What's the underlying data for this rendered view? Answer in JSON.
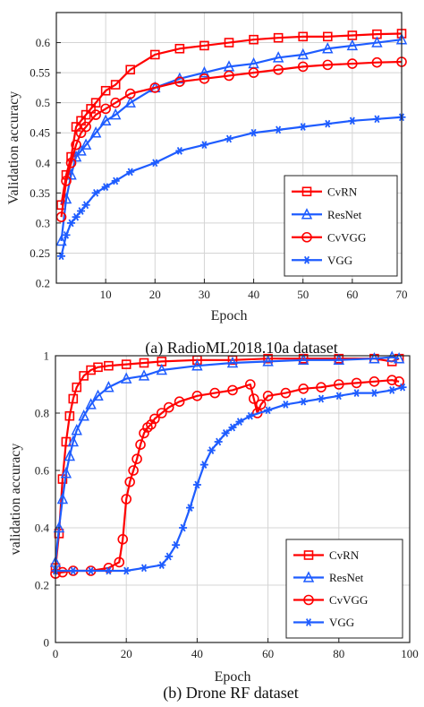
{
  "figure": {
    "caption_a": "(a) RadioML2018.10a dataset",
    "caption_b": "(b) Drone RF dataset"
  },
  "chart_data": [
    {
      "type": "line",
      "xlabel": "Epoch",
      "ylabel": "Validation accuracy",
      "xlim": [
        0,
        70
      ],
      "ylim": [
        0.2,
        0.65
      ],
      "xticks": [
        10,
        20,
        30,
        40,
        50,
        60,
        70
      ],
      "yticks": [
        0.2,
        0.25,
        0.3,
        0.35,
        0.4,
        0.45,
        0.5,
        0.55,
        0.6
      ],
      "grid": true,
      "legend_position": "bottom-right",
      "series": [
        {
          "name": "CvRN",
          "color": "#ff0000",
          "marker": "square",
          "x": [
            1,
            2,
            3,
            4,
            5,
            6,
            7,
            8,
            10,
            12,
            15,
            20,
            25,
            30,
            35,
            40,
            45,
            50,
            55,
            60,
            65,
            70
          ],
          "y": [
            0.33,
            0.38,
            0.41,
            0.46,
            0.47,
            0.48,
            0.49,
            0.5,
            0.52,
            0.53,
            0.555,
            0.58,
            0.59,
            0.595,
            0.6,
            0.605,
            0.608,
            0.61,
            0.61,
            0.612,
            0.614,
            0.615
          ]
        },
        {
          "name": "ResNet",
          "color": "#1e5cff",
          "marker": "triangle",
          "x": [
            1,
            2,
            3,
            4,
            5,
            6,
            8,
            10,
            12,
            15,
            20,
            25,
            30,
            35,
            40,
            45,
            50,
            55,
            60,
            65,
            70
          ],
          "y": [
            0.27,
            0.34,
            0.38,
            0.41,
            0.42,
            0.43,
            0.45,
            0.47,
            0.48,
            0.5,
            0.525,
            0.54,
            0.55,
            0.56,
            0.565,
            0.575,
            0.58,
            0.59,
            0.595,
            0.6,
            0.605
          ]
        },
        {
          "name": "CvVGG",
          "color": "#ff0000",
          "marker": "circle",
          "x": [
            1,
            2,
            3,
            4,
            5,
            6,
            8,
            10,
            12,
            15,
            20,
            25,
            30,
            35,
            40,
            45,
            50,
            55,
            60,
            65,
            70
          ],
          "y": [
            0.31,
            0.37,
            0.4,
            0.43,
            0.45,
            0.46,
            0.48,
            0.49,
            0.5,
            0.515,
            0.525,
            0.535,
            0.54,
            0.545,
            0.55,
            0.555,
            0.56,
            0.563,
            0.565,
            0.567,
            0.568
          ]
        },
        {
          "name": "VGG",
          "color": "#1e5cff",
          "marker": "asterisk",
          "x": [
            1,
            2,
            3,
            4,
            5,
            6,
            8,
            10,
            12,
            15,
            20,
            25,
            30,
            35,
            40,
            45,
            50,
            55,
            60,
            65,
            70
          ],
          "y": [
            0.245,
            0.28,
            0.3,
            0.31,
            0.32,
            0.33,
            0.35,
            0.36,
            0.37,
            0.385,
            0.4,
            0.42,
            0.43,
            0.44,
            0.45,
            0.455,
            0.46,
            0.465,
            0.47,
            0.473,
            0.476
          ]
        }
      ]
    },
    {
      "type": "line",
      "xlabel": "Epoch",
      "ylabel": "validation accuracy",
      "xlim": [
        0,
        100
      ],
      "ylim": [
        0,
        1
      ],
      "xticks": [
        0,
        20,
        40,
        60,
        80,
        100
      ],
      "yticks": [
        0,
        0.2,
        0.4,
        0.6,
        0.8,
        1
      ],
      "grid": true,
      "legend_position": "bottom-right",
      "series": [
        {
          "name": "CvRN",
          "color": "#ff0000",
          "marker": "square",
          "x": [
            0,
            1,
            2,
            3,
            4,
            5,
            6,
            8,
            10,
            12,
            15,
            20,
            25,
            30,
            40,
            50,
            60,
            70,
            80,
            90,
            95,
            97
          ],
          "y": [
            0.26,
            0.38,
            0.57,
            0.7,
            0.79,
            0.85,
            0.89,
            0.93,
            0.95,
            0.96,
            0.965,
            0.97,
            0.975,
            0.98,
            0.985,
            0.985,
            0.99,
            0.99,
            0.99,
            0.99,
            0.98,
            0.99
          ]
        },
        {
          "name": "ResNet",
          "color": "#1e5cff",
          "marker": "triangle",
          "x": [
            0,
            1,
            2,
            3,
            4,
            5,
            6,
            8,
            10,
            12,
            15,
            20,
            25,
            30,
            40,
            50,
            60,
            70,
            80,
            90,
            95,
            97
          ],
          "y": [
            0.28,
            0.4,
            0.5,
            0.59,
            0.65,
            0.7,
            0.74,
            0.79,
            0.83,
            0.86,
            0.89,
            0.92,
            0.93,
            0.95,
            0.965,
            0.975,
            0.98,
            0.985,
            0.985,
            0.99,
            0.995,
            0.99
          ]
        },
        {
          "name": "CvVGG",
          "color": "#ff0000",
          "marker": "circle",
          "x": [
            0,
            2,
            5,
            10,
            15,
            18,
            19,
            20,
            21,
            22,
            23,
            24,
            25,
            26,
            27,
            28,
            30,
            32,
            35,
            40,
            45,
            50,
            55,
            56,
            57,
            58,
            60,
            65,
            70,
            75,
            80,
            85,
            90,
            95,
            97
          ],
          "y": [
            0.24,
            0.245,
            0.25,
            0.25,
            0.26,
            0.28,
            0.36,
            0.5,
            0.56,
            0.6,
            0.64,
            0.69,
            0.73,
            0.75,
            0.76,
            0.78,
            0.8,
            0.82,
            0.84,
            0.86,
            0.87,
            0.88,
            0.9,
            0.85,
            0.8,
            0.83,
            0.86,
            0.87,
            0.885,
            0.89,
            0.9,
            0.905,
            0.91,
            0.915,
            0.91
          ]
        },
        {
          "name": "VGG",
          "color": "#1e5cff",
          "marker": "asterisk",
          "x": [
            0,
            5,
            10,
            15,
            20,
            25,
            30,
            32,
            34,
            36,
            38,
            40,
            42,
            44,
            46,
            48,
            50,
            52,
            55,
            60,
            65,
            70,
            75,
            80,
            85,
            90,
            95,
            98
          ],
          "y": [
            0.25,
            0.25,
            0.25,
            0.25,
            0.25,
            0.26,
            0.27,
            0.3,
            0.34,
            0.4,
            0.47,
            0.55,
            0.62,
            0.67,
            0.7,
            0.73,
            0.75,
            0.77,
            0.79,
            0.81,
            0.83,
            0.84,
            0.85,
            0.86,
            0.87,
            0.87,
            0.88,
            0.89
          ]
        }
      ]
    }
  ]
}
